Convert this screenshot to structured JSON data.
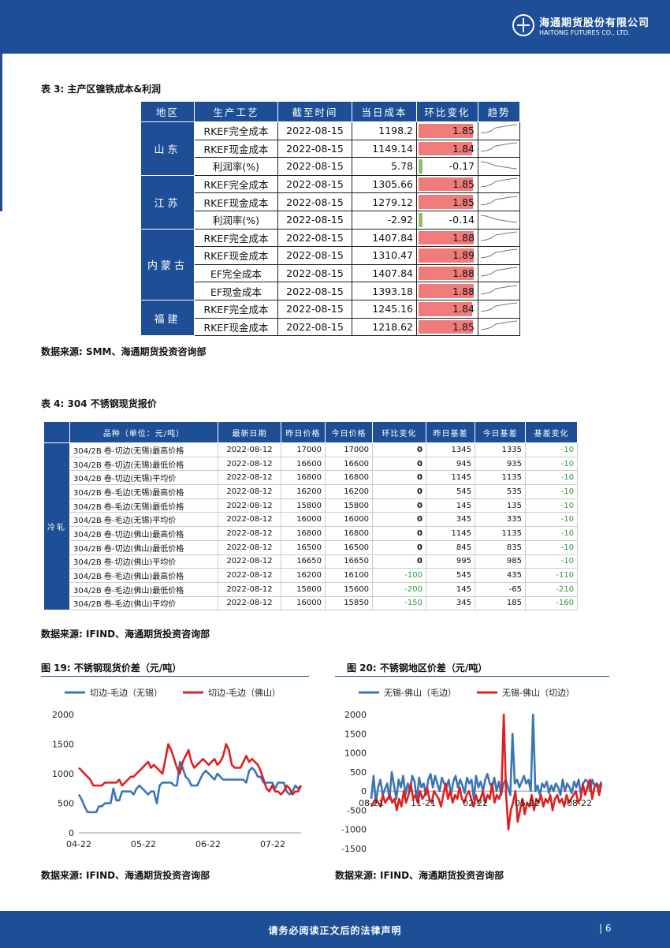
{
  "header": {
    "company_cn": "海通期货股份有限公司",
    "company_en": "HAITONG FUTURES CO., LTD."
  },
  "table3": {
    "caption": "表 3: 主产区镍铁成本&利润",
    "columns": [
      "地区",
      "生产工艺",
      "截至时间",
      "当日成本",
      "环比变化",
      "趋势"
    ],
    "groups": [
      {
        "region": "山东",
        "rows": [
          {
            "process": "RKEF完全成本",
            "date": "2022-08-15",
            "cost": "1198.2",
            "change": "1.85",
            "sign": "pos",
            "trend": "up"
          },
          {
            "process": "RKEF现金成本",
            "date": "2022-08-15",
            "cost": "1149.14",
            "change": "1.84",
            "sign": "pos",
            "trend": "up"
          },
          {
            "process": "利润率(%)",
            "date": "2022-08-15",
            "cost": "5.78",
            "change": "-0.17",
            "sign": "neg",
            "trend": "down"
          }
        ]
      },
      {
        "region": "江苏",
        "rows": [
          {
            "process": "RKEF完全成本",
            "date": "2022-08-15",
            "cost": "1305.66",
            "change": "1.85",
            "sign": "pos",
            "trend": "up"
          },
          {
            "process": "RKEF现金成本",
            "date": "2022-08-15",
            "cost": "1279.12",
            "change": "1.85",
            "sign": "pos",
            "trend": "up"
          },
          {
            "process": "利润率(%)",
            "date": "2022-08-15",
            "cost": "-2.92",
            "change": "-0.14",
            "sign": "neg",
            "trend": "down"
          }
        ]
      },
      {
        "region": "内蒙古",
        "rows": [
          {
            "process": "RKEF完全成本",
            "date": "2022-08-15",
            "cost": "1407.84",
            "change": "1.88",
            "sign": "pos",
            "trend": "up"
          },
          {
            "process": "RKEF现金成本",
            "date": "2022-08-15",
            "cost": "1310.47",
            "change": "1.89",
            "sign": "pos",
            "trend": "up"
          },
          {
            "process": "EF完全成本",
            "date": "2022-08-15",
            "cost": "1407.84",
            "change": "1.88",
            "sign": "pos",
            "trend": "up"
          },
          {
            "process": "EF现金成本",
            "date": "2022-08-15",
            "cost": "1393.18",
            "change": "1.88",
            "sign": "pos",
            "trend": "up"
          }
        ]
      },
      {
        "region": "福建",
        "rows": [
          {
            "process": "RKEF完全成本",
            "date": "2022-08-15",
            "cost": "1245.16",
            "change": "1.84",
            "sign": "pos",
            "trend": "up"
          },
          {
            "process": "RKEF现金成本",
            "date": "2022-08-15",
            "cost": "1218.62",
            "change": "1.85",
            "sign": "pos",
            "trend": "up"
          }
        ]
      }
    ],
    "source": "数据来源: SMM、海通期货投资咨询部",
    "colors": {
      "pos_bar": "#ef7b7b",
      "neg_bar": "#8dc06a"
    }
  },
  "table4": {
    "caption": "表 4: 304 不锈钢现货报价",
    "columns": [
      "",
      "品种（单位：元/吨）",
      "最新日期",
      "昨日价格",
      "今日价格",
      "环比变化",
      "昨日基差",
      "今日基差",
      "基差变化"
    ],
    "category": "冷轧",
    "rows": [
      {
        "name": "304/2B 卷-切边(无锡)最高价格",
        "date": "2022-08-12",
        "y": "17000",
        "t": "17000",
        "chg": "0",
        "yb": "1345",
        "tb": "1335",
        "bchg": "-10"
      },
      {
        "name": "304/2B 卷-切边(无锡)最低价格",
        "date": "2022-08-12",
        "y": "16600",
        "t": "16600",
        "chg": "0",
        "yb": "945",
        "tb": "935",
        "bchg": "-10"
      },
      {
        "name": "304/2B 卷-切边(无锡)平均价",
        "date": "2022-08-12",
        "y": "16800",
        "t": "16800",
        "chg": "0",
        "yb": "1145",
        "tb": "1135",
        "bchg": "-10"
      },
      {
        "name": "304/2B 卷-毛边(无锡)最高价格",
        "date": "2022-08-12",
        "y": "16200",
        "t": "16200",
        "chg": "0",
        "yb": "545",
        "tb": "535",
        "bchg": "-10"
      },
      {
        "name": "304/2B 卷-毛边(无锡)最低价格",
        "date": "2022-08-12",
        "y": "15800",
        "t": "15800",
        "chg": "0",
        "yb": "145",
        "tb": "135",
        "bchg": "-10"
      },
      {
        "name": "304/2B 卷-毛边(无锡)平均价",
        "date": "2022-08-12",
        "y": "16000",
        "t": "16000",
        "chg": "0",
        "yb": "345",
        "tb": "335",
        "bchg": "-10"
      },
      {
        "name": "304/2B 卷-切边(佛山)最高价格",
        "date": "2022-08-12",
        "y": "16800",
        "t": "16800",
        "chg": "0",
        "yb": "1145",
        "tb": "1135",
        "bchg": "-10"
      },
      {
        "name": "304/2B 卷-切边(佛山)最低价格",
        "date": "2022-08-12",
        "y": "16500",
        "t": "16500",
        "chg": "0",
        "yb": "845",
        "tb": "835",
        "bchg": "-10"
      },
      {
        "name": "304/2B 卷-切边(佛山)平均价",
        "date": "2022-08-12",
        "y": "16650",
        "t": "16650",
        "chg": "0",
        "yb": "995",
        "tb": "985",
        "bchg": "-10"
      },
      {
        "name": "304/2B 卷-毛边(佛山)最高价格",
        "date": "2022-08-12",
        "y": "16200",
        "t": "16100",
        "chg": "-100",
        "yb": "545",
        "tb": "435",
        "bchg": "-110"
      },
      {
        "name": "304/2B 卷-毛边(佛山)最低价格",
        "date": "2022-08-12",
        "y": "15800",
        "t": "15600",
        "chg": "-200",
        "yb": "145",
        "tb": "-65",
        "bchg": "-210"
      },
      {
        "name": "304/2B 卷-毛边(佛山)平均价",
        "date": "2022-08-12",
        "y": "16000",
        "t": "15850",
        "chg": "-150",
        "yb": "345",
        "tb": "185",
        "bchg": "-160"
      }
    ],
    "source": "数据来源: IFIND、海通期货投资咨询部",
    "colors": {
      "neg_text": "#2e9a3e"
    }
  },
  "fig19": {
    "caption": "图 19: 不锈钢现货价差（元/吨）",
    "source": "数据来源: IFIND、海通期货投资咨询部"
  },
  "fig20": {
    "caption": "图 20: 不锈钢地区价差（元/吨）",
    "source": "数据来源: IFIND、海通期货投资咨询部"
  },
  "chart_data": [
    {
      "type": "line",
      "legend_position": "top",
      "x_ticks": [
        "04-22",
        "05-22",
        "06-22",
        "07-22"
      ],
      "ylim": [
        0,
        2000
      ],
      "y_ticks": [
        0,
        500,
        1000,
        1500,
        2000
      ],
      "grid": false,
      "series": [
        {
          "name": "切边-毛边（无锡）",
          "color": "#3a75b8",
          "values": [
            650,
            560,
            450,
            350,
            350,
            350,
            350,
            450,
            450,
            500,
            500,
            500,
            750,
            550,
            550,
            700,
            700,
            700,
            700,
            650,
            750,
            800,
            750,
            700,
            650,
            700,
            700,
            500,
            800,
            850,
            850,
            850,
            850,
            800,
            800,
            1200,
            1100,
            950,
            900,
            800,
            800,
            800,
            900,
            1000,
            1050,
            1000,
            950,
            900,
            1000,
            950,
            900,
            900,
            900,
            900,
            900,
            900,
            900,
            900,
            850,
            1050,
            1100,
            1050,
            950,
            950,
            850,
            850,
            850,
            850,
            750,
            850,
            850,
            850,
            700,
            650,
            700,
            800,
            750,
            800
          ]
        },
        {
          "name": "切边-毛边（佛山）",
          "color": "#e02020",
          "values": [
            1100,
            1050,
            1000,
            950,
            900,
            800,
            800,
            800,
            800,
            850,
            850,
            850,
            850,
            850,
            900,
            800,
            850,
            900,
            950,
            950,
            1000,
            1050,
            1100,
            1150,
            1200,
            1100,
            1150,
            1100,
            1050,
            1000,
            1250,
            1500,
            1400,
            1250,
            1100,
            1000,
            1200,
            1300,
            1400,
            1200,
            1100,
            1150,
            1200,
            1250,
            1200,
            1150,
            1200,
            1250,
            1150,
            1200,
            1300,
            1500,
            1400,
            1150,
            1100,
            1100,
            1100,
            1200,
            1300,
            1200,
            1250,
            1200,
            1150,
            1050,
            900,
            750,
            700,
            800,
            700,
            700,
            650,
            700,
            800,
            750,
            650,
            700,
            700,
            800
          ]
        }
      ]
    },
    {
      "type": "line",
      "legend_position": "top",
      "x_ticks": [
        "08-21",
        "11-21",
        "02-22",
        "05-22",
        "08-22"
      ],
      "ylim": [
        -1500,
        2000
      ],
      "y_ticks": [
        -1500,
        -1000,
        -500,
        0,
        500,
        1000,
        1500,
        2000
      ],
      "grid": false,
      "series": [
        {
          "name": "无锡-佛山（毛边）",
          "color": "#3a75b8",
          "values": [
            -200,
            400,
            -300,
            100,
            300,
            -100,
            50,
            200,
            -200,
            500,
            150,
            -200,
            300,
            100,
            400,
            -100,
            200,
            0,
            400,
            250,
            -250,
            350,
            100,
            200,
            -100,
            300,
            450,
            100,
            400,
            200,
            0,
            350,
            200,
            100,
            300,
            -100,
            250,
            400,
            100,
            300,
            150,
            -50,
            350,
            200,
            300,
            -200,
            400,
            100,
            250,
            0,
            300,
            450,
            200,
            100,
            350,
            0,
            250,
            -100,
            200,
            300,
            100,
            -100,
            1500,
            200,
            300,
            100,
            250,
            400,
            200,
            300,
            0,
            2000,
            0,
            150,
            -100,
            200,
            100,
            250,
            -50,
            150,
            0,
            200,
            100,
            -100,
            300,
            0,
            200,
            100,
            -50,
            250,
            100,
            300,
            -100,
            200,
            300,
            250,
            0,
            300,
            150,
            200,
            100,
            250
          ]
        },
        {
          "name": "无锡-佛山（切边）",
          "color": "#e02020",
          "values": [
            -400,
            -300,
            -200,
            -300,
            -400,
            -100,
            -300,
            -200,
            -100,
            -300,
            -200,
            -500,
            -200,
            -400,
            0,
            -300,
            -100,
            200,
            -200,
            -100,
            -300,
            0,
            -200,
            -100,
            100,
            -200,
            -300,
            0,
            -100,
            -200,
            -400,
            -100,
            200,
            -200,
            0,
            -300,
            -100,
            -200,
            100,
            -200,
            -300,
            -100,
            0,
            -200,
            -400,
            -100,
            -300,
            -200,
            0,
            -300,
            -100,
            -200,
            200,
            -300,
            -100,
            -200,
            0,
            2000,
            -100,
            -1000,
            -500,
            -300,
            0,
            -800,
            -500,
            -200,
            -600,
            -300,
            -400,
            -100,
            -500,
            -200,
            -300,
            -100,
            -400,
            -200,
            -300,
            -100,
            -500,
            -200,
            -100,
            -300,
            -200,
            -400,
            -100,
            -300,
            -200,
            -100,
            0,
            -300,
            -200,
            200,
            -100,
            100,
            300,
            -200,
            100,
            200,
            -100,
            200
          ]
        }
      ]
    }
  ],
  "footer": {
    "notice": "请务必阅读正文后的法律声明",
    "page": "| 6"
  }
}
